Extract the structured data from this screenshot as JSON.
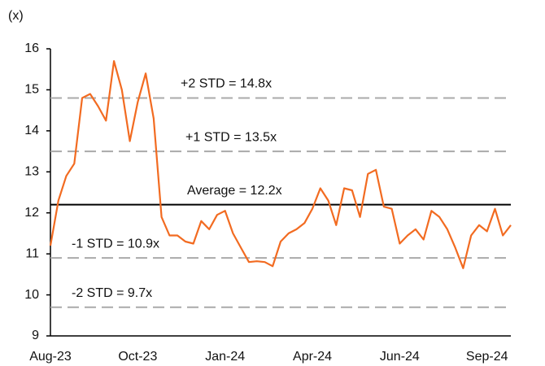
{
  "chart_data": {
    "type": "line",
    "y_axis_label": "(x)",
    "ylim": [
      9,
      16
    ],
    "yticks": [
      9,
      10,
      11,
      12,
      13,
      14,
      15,
      16
    ],
    "categories": [
      "Aug-23",
      null,
      null,
      null,
      null,
      null,
      null,
      null,
      null,
      null,
      null,
      "Oct-23",
      null,
      null,
      null,
      null,
      null,
      null,
      null,
      null,
      null,
      null,
      "Jan-24",
      null,
      null,
      null,
      null,
      null,
      null,
      null,
      null,
      null,
      null,
      "Apr-24",
      null,
      null,
      null,
      null,
      null,
      null,
      null,
      null,
      null,
      null,
      "Jun-24",
      null,
      null,
      null,
      null,
      null,
      null,
      null,
      null,
      null,
      null,
      "Sep-24",
      null,
      null,
      null
    ],
    "series": [
      {
        "color": "#f26b21",
        "values": [
          11.2,
          12.3,
          12.9,
          13.2,
          14.8,
          14.9,
          14.6,
          14.25,
          15.7,
          15.0,
          13.75,
          14.7,
          15.4,
          14.3,
          11.9,
          11.45,
          11.45,
          11.3,
          11.25,
          11.8,
          11.6,
          11.95,
          12.05,
          11.5,
          11.15,
          10.8,
          10.82,
          10.8,
          10.7,
          11.3,
          11.5,
          11.6,
          11.75,
          12.1,
          12.6,
          12.3,
          11.7,
          12.6,
          12.55,
          11.9,
          12.95,
          13.05,
          12.15,
          12.1,
          11.25,
          11.45,
          11.6,
          11.35,
          12.05,
          11.9,
          11.6,
          11.15,
          10.65,
          11.45,
          11.7,
          11.55,
          12.1,
          11.45,
          11.7
        ]
      }
    ],
    "reference_lines": [
      {
        "label": "+2 STD = 14.8x",
        "value": 14.8,
        "color": "#aaaaaa",
        "dashed": true
      },
      {
        "label": "+1 STD = 13.5x",
        "value": 13.5,
        "color": "#aaaaaa",
        "dashed": true
      },
      {
        "label": "Average = 12.2x",
        "value": 12.2,
        "color": "#000000",
        "dashed": false
      },
      {
        "label": "-1 STD = 10.9x",
        "value": 10.9,
        "color": "#aaaaaa",
        "dashed": true
      },
      {
        "label": "-2 STD = 9.7x",
        "value": 9.7,
        "color": "#aaaaaa",
        "dashed": true
      }
    ]
  }
}
